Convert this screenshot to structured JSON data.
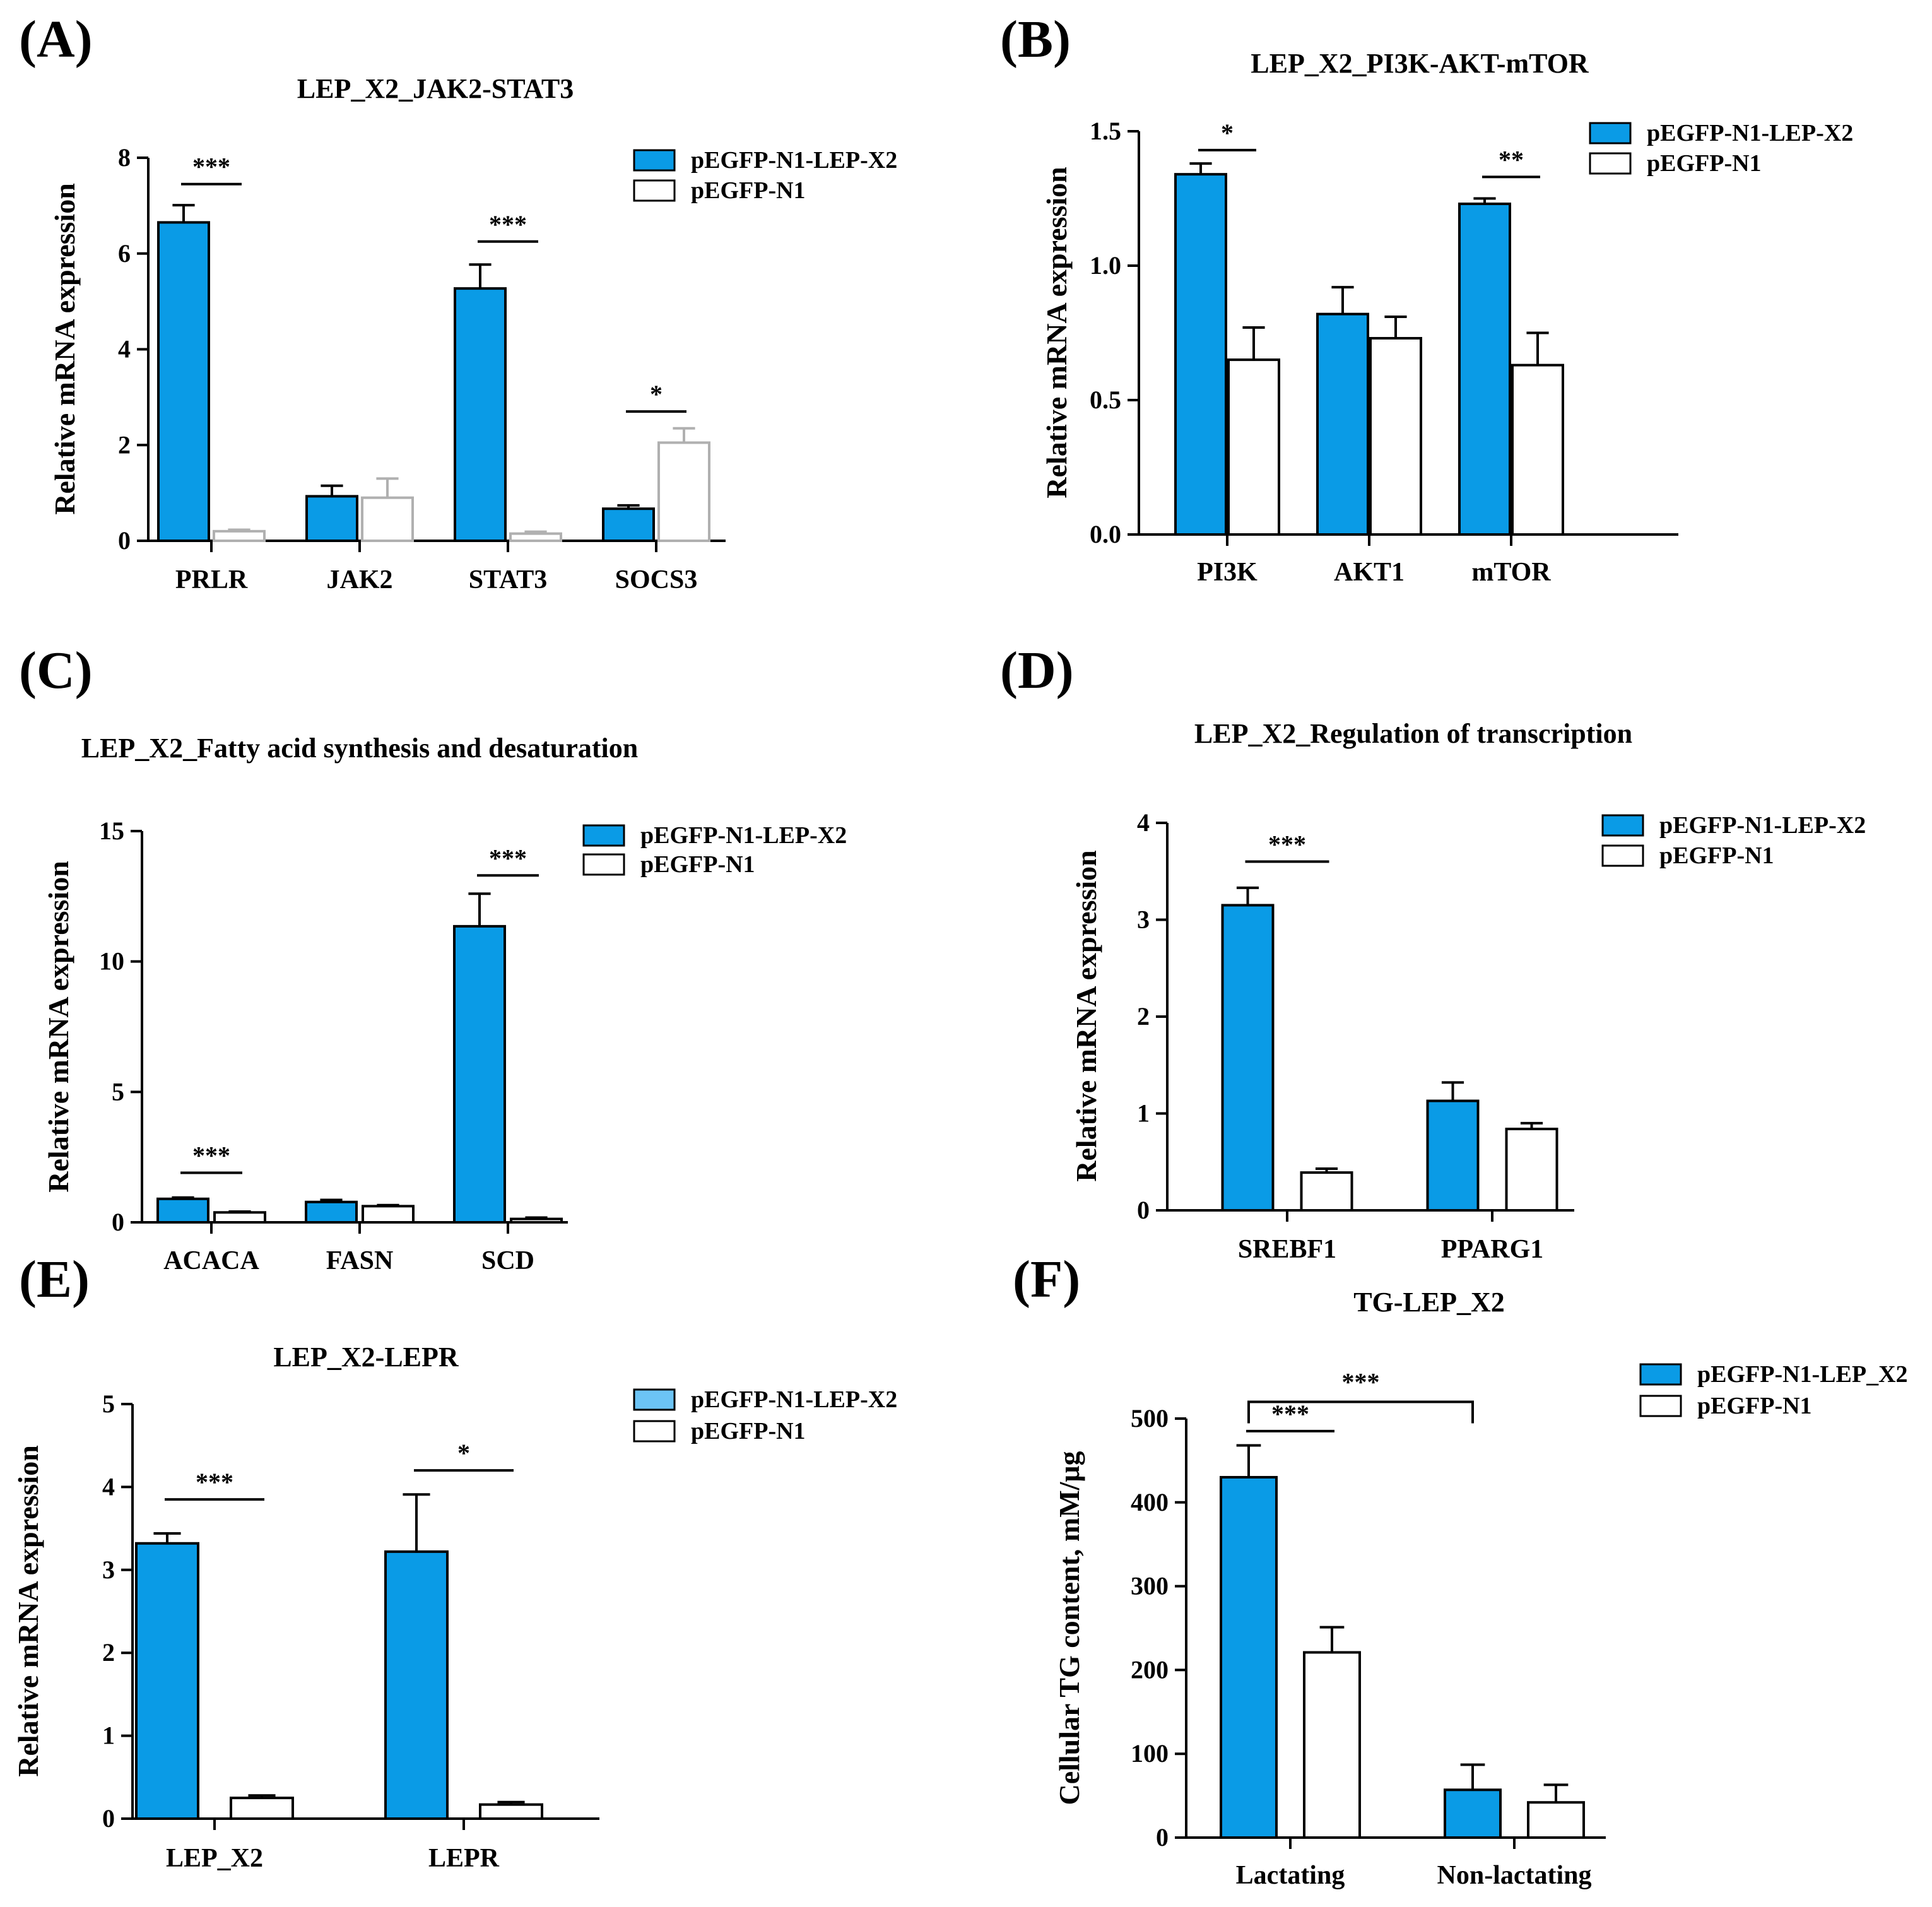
{
  "colors": {
    "treatment": "#0a9be6",
    "treatment_light": "#6cc4f5",
    "control": "#ffffff",
    "stroke": "#000000"
  },
  "chart_data": [
    {
      "panel": "(A)",
      "type": "bar",
      "title": "LEP_X2_JAK2-STAT3",
      "ylabel": "Relative mRNA expression",
      "xlabel": "",
      "ylim": [
        0,
        8
      ],
      "yticks": [
        0,
        2,
        4,
        6,
        8
      ],
      "categories": [
        "PRLR",
        "JAK2",
        "STAT3",
        "SOCS3"
      ],
      "series": [
        {
          "name": "pEGFP-N1-LEP-X2",
          "values": [
            6.65,
            0.93,
            5.27,
            0.67
          ],
          "errors": [
            0.36,
            0.22,
            0.5,
            0.07
          ]
        },
        {
          "name": "pEGFP-N1",
          "values": [
            0.2,
            0.9,
            0.15,
            2.05
          ],
          "errors": [
            0.03,
            0.4,
            0.04,
            0.3
          ]
        }
      ],
      "control_stroke": "#b0b0b0",
      "significance": [
        {
          "label": "***",
          "category": 0,
          "y": 7.45
        },
        {
          "label": "***",
          "category": 2,
          "y": 6.25
        },
        {
          "label": "*",
          "category": 3,
          "y": 2.7
        }
      ]
    },
    {
      "panel": "(B)",
      "type": "bar",
      "title": "LEP_X2_PI3K-AKT-mTOR",
      "ylabel": "Relative mRNA expression",
      "xlabel": "",
      "ylim": [
        0,
        1.5
      ],
      "yticks": [
        "0.0",
        "0.5",
        "1.0",
        "1.5"
      ],
      "categories": [
        "PI3K",
        "AKT1",
        "mTOR"
      ],
      "series": [
        {
          "name": "pEGFP-N1-LEP-X2",
          "values": [
            1.34,
            0.82,
            1.23
          ],
          "errors": [
            0.04,
            0.1,
            0.02
          ]
        },
        {
          "name": "pEGFP-N1",
          "values": [
            0.65,
            0.73,
            0.63
          ],
          "errors": [
            0.12,
            0.08,
            0.12
          ]
        }
      ],
      "significance": [
        {
          "label": "*",
          "category": 0,
          "y": 1.43
        },
        {
          "label": "**",
          "category": 2,
          "y": 1.33
        }
      ]
    },
    {
      "panel": "(C)",
      "type": "bar",
      "title": "LEP_X2_Fatty acid synthesis and desaturation",
      "ylabel": "Relative mRNA expression",
      "xlabel": "",
      "ylim": [
        0,
        15
      ],
      "yticks": [
        0,
        5,
        10,
        15
      ],
      "categories": [
        "ACACA",
        "FASN",
        "SCD"
      ],
      "series": [
        {
          "name": "pEGFP-N1-LEP-X2",
          "values": [
            0.9,
            0.78,
            11.35
          ],
          "errors": [
            0.05,
            0.08,
            1.25
          ]
        },
        {
          "name": "pEGFP-N1",
          "values": [
            0.38,
            0.62,
            0.13
          ],
          "errors": [
            0.03,
            0.04,
            0.05
          ]
        }
      ],
      "significance": [
        {
          "label": "***",
          "category": 0,
          "y": 1.9
        },
        {
          "label": "***",
          "category": 2,
          "y": 13.3
        }
      ]
    },
    {
      "panel": "(D)",
      "type": "bar",
      "title": "LEP_X2_Regulation of transcription",
      "ylabel": "Relative mRNA expression",
      "xlabel": "",
      "ylim": [
        0,
        4
      ],
      "yticks": [
        0,
        1,
        2,
        3,
        4
      ],
      "categories": [
        "SREBF1",
        "PPARG1"
      ],
      "series": [
        {
          "name": "pEGFP-N1-LEP-X2",
          "values": [
            3.15,
            1.13
          ],
          "errors": [
            0.18,
            0.19
          ]
        },
        {
          "name": "pEGFP-N1",
          "values": [
            0.39,
            0.84
          ],
          "errors": [
            0.04,
            0.06
          ]
        }
      ],
      "significance": [
        {
          "label": "***",
          "category": 0,
          "y": 3.6
        }
      ]
    },
    {
      "panel": "(E)",
      "type": "bar",
      "title": "LEP_X2-LEPR",
      "ylabel": "Relative mRNA expression",
      "xlabel": "",
      "ylim": [
        0,
        5
      ],
      "yticks": [
        0,
        1,
        2,
        3,
        4,
        5
      ],
      "categories": [
        "LEP_X2",
        "LEPR"
      ],
      "series": [
        {
          "name": "pEGFP-N1-LEP-X2",
          "values": [
            3.32,
            3.22
          ],
          "errors": [
            0.12,
            0.69
          ]
        },
        {
          "name": "pEGFP-N1",
          "values": [
            0.25,
            0.17
          ],
          "errors": [
            0.03,
            0.03
          ]
        }
      ],
      "legend_first_color": "#6cc4f5",
      "significance": [
        {
          "label": "***",
          "category": 0,
          "y": 3.85
        },
        {
          "label": "*",
          "category": 1,
          "y": 4.2
        }
      ]
    },
    {
      "panel": "(F)",
      "type": "bar",
      "title": "TG-LEP_X2",
      "ylabel": "Cellular TG content, mM/μg",
      "xlabel": "",
      "ylim": [
        0,
        500
      ],
      "yticks": [
        0,
        100,
        200,
        300,
        400,
        500
      ],
      "categories": [
        "Lactating",
        "Non-lactating"
      ],
      "series": [
        {
          "name": "pEGFP-N1-LEP_X2",
          "values": [
            430,
            57
          ],
          "errors": [
            38,
            30
          ]
        },
        {
          "name": "pEGFP-N1",
          "values": [
            221,
            42
          ],
          "errors": [
            30,
            21
          ]
        }
      ],
      "significance": [
        {
          "label": "***",
          "category": 0,
          "y": 485
        }
      ],
      "bracket": {
        "label": "***",
        "from": 0,
        "to": 1,
        "y": 520
      }
    }
  ]
}
